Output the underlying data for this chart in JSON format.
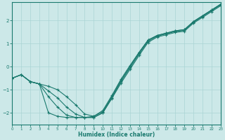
{
  "xlabel": "Humidex (Indice chaleur)",
  "background_color": "#cce8e8",
  "line_color": "#1a7a6e",
  "grid_color": "#aad4d4",
  "xlim": [
    0,
    23
  ],
  "ylim": [
    -2.5,
    2.8
  ],
  "yticks": [
    -2,
    -1,
    0,
    1,
    2
  ],
  "xticks": [
    0,
    1,
    2,
    3,
    4,
    5,
    6,
    7,
    8,
    9,
    10,
    11,
    12,
    13,
    14,
    15,
    16,
    17,
    18,
    19,
    20,
    21,
    22,
    23
  ],
  "curves": [
    [
      [
        -0.5,
        -0.35,
        -0.65,
        -0.75,
        -0.85,
        -1.0,
        -1.3,
        -1.65,
        -2.05,
        -2.15,
        -1.9,
        -1.25,
        -0.55,
        0.05,
        0.62,
        1.15,
        1.35,
        1.45,
        1.55,
        1.6,
        1.95,
        2.2,
        2.45,
        2.7
      ]
    ],
    [
      [
        -0.5,
        -0.35,
        -0.65,
        -0.75,
        -1.05,
        -1.35,
        -1.75,
        -2.05,
        -2.2,
        -2.2,
        -2.0,
        -1.35,
        -0.65,
        -0.05,
        0.55,
        1.1,
        1.32,
        1.42,
        1.52,
        1.57,
        1.92,
        2.17,
        2.42,
        2.67
      ]
    ],
    [
      [
        -0.5,
        -0.35,
        -0.65,
        -0.75,
        -1.3,
        -1.75,
        -2.1,
        -2.2,
        -2.2,
        -2.2,
        -2.0,
        -1.38,
        -0.72,
        -0.12,
        0.48,
        1.05,
        1.28,
        1.38,
        1.48,
        1.53,
        1.88,
        2.13,
        2.38,
        2.63
      ]
    ],
    [
      [
        -0.5,
        -0.35,
        -0.65,
        -0.75,
        -2.0,
        -2.15,
        -2.2,
        -2.2,
        -2.2,
        -2.15,
        -1.95,
        -1.3,
        -0.6,
        0.0,
        0.6,
        1.15,
        1.35,
        1.45,
        1.55,
        1.6,
        1.95,
        2.2,
        2.45,
        2.7
      ]
    ]
  ]
}
